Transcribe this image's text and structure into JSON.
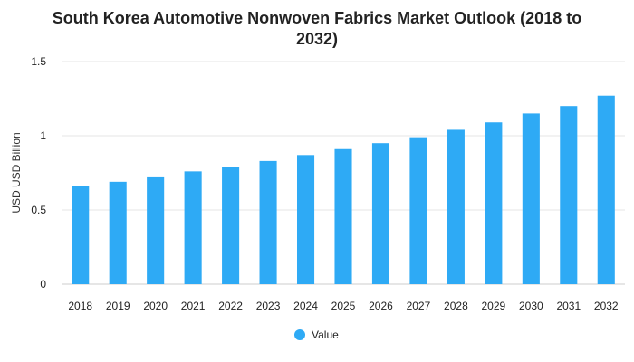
{
  "chart_data": {
    "type": "bar",
    "title": "South Korea Automotive Nonwoven Fabrics Market Outlook (2018 to 2032)",
    "title_lines": [
      "South Korea Automotive Nonwoven Fabrics Market Outlook (2018 to",
      "2032)"
    ],
    "xlabel": "",
    "ylabel": "USD USD Billion",
    "categories": [
      "2018",
      "2019",
      "2020",
      "2021",
      "2022",
      "2023",
      "2024",
      "2025",
      "2026",
      "2027",
      "2028",
      "2029",
      "2030",
      "2031",
      "2032"
    ],
    "series": [
      {
        "name": "Value",
        "color": "#2eaaf5",
        "values": [
          0.66,
          0.69,
          0.72,
          0.76,
          0.79,
          0.83,
          0.87,
          0.91,
          0.95,
          0.99,
          1.04,
          1.09,
          1.15,
          1.2,
          1.27
        ]
      }
    ],
    "ylim": [
      0,
      1.5
    ],
    "yticks": [
      0,
      0.5,
      1,
      1.5
    ],
    "ytick_labels": [
      "0",
      "0.5",
      "1",
      "1.5"
    ],
    "grid": true,
    "legend_position": "bottom-center"
  }
}
